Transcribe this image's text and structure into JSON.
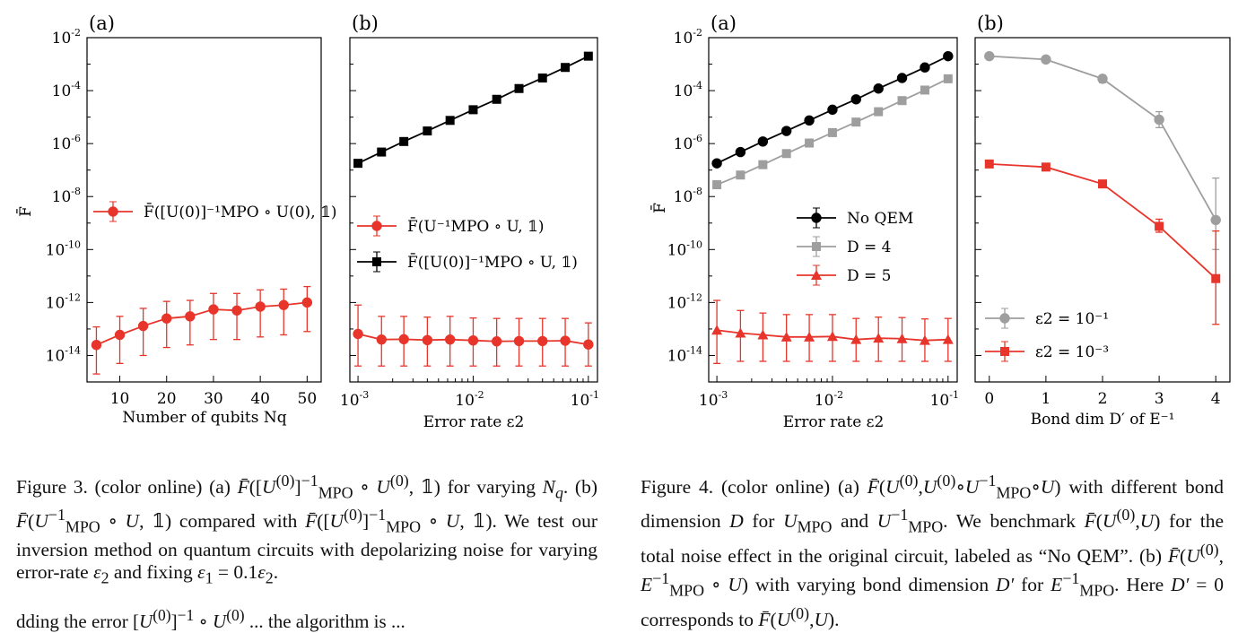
{
  "colors": {
    "red": "#e8352b",
    "black": "#000000",
    "gray": "#9e9e9e"
  },
  "figures": [
    {
      "id": "fig3",
      "panels": [
        {
          "letter": "(a)",
          "xlabel": "Number of qubits Nq",
          "ylabel": "F̄",
          "legend": [
            "F̄([U(0)]⁻¹MPO ∘ U(0), 𝟙)"
          ]
        },
        {
          "letter": "(b)",
          "xlabel": "Error rate ε2",
          "legend": [
            "F̄(U⁻¹MPO ∘ U, 𝟙)",
            "F̄([U(0)]⁻¹MPO ∘ U, 𝟙)"
          ]
        }
      ],
      "caption": "Figure 3. (color online) (a) F̄([U(0)]⁻¹MPO ∘ U(0), 𝟙) for varying Nq. (b) F̄(U⁻¹MPO ∘ U, 𝟙) compared with F̄([U(0)]⁻¹MPO ∘ U, 𝟙). We test our inversion method on quantum circuits with depolarizing noise for varying error-rate ε2 and fixing ε1 = 0.1ε2."
    },
    {
      "id": "fig4",
      "panels": [
        {
          "letter": "(a)",
          "xlabel": "Error rate ε2",
          "ylabel": "F̄",
          "legend": [
            "No QEM",
            "D = 4",
            "D = 5"
          ]
        },
        {
          "letter": "(b)",
          "xlabel": "Bond dim D′ of E⁻¹",
          "legend": [
            "ε2 = 10⁻¹",
            "ε2 = 10⁻³"
          ]
        }
      ],
      "caption": "Figure 4. (color online) (a) F̄(U(0), U(0)∘U⁻¹MPO∘U) with different bond dimension D for UMPO and U⁻¹MPO. We benchmark F̄(U(0), U) for the total noise effect in the original circuit, labeled as “No QEM”. (b) F̄(U(0), E⁻¹MPO ∘ U) with varying bond dimension D′ for E⁻¹MPO. Here D′ = 0 corresponds to F̄(U(0), U)."
    }
  ],
  "chart_data": [
    {
      "type": "line",
      "title": "(a)",
      "xlabel": "Number of qubits Nq",
      "ylabel": "F̄",
      "xlim": [
        3,
        53
      ],
      "ylim": [
        1e-15,
        0.01
      ],
      "yscale": "log",
      "x": [
        5,
        10,
        15,
        20,
        25,
        30,
        35,
        40,
        45,
        50
      ],
      "xticks": [
        "10",
        "20",
        "30",
        "40",
        "50"
      ],
      "yticks": [
        "10-14",
        "10-12",
        "10-10",
        "10-8",
        "10-6",
        "10-4",
        "10-2"
      ],
      "series": [
        {
          "name": "F̄([U(0)]⁻¹MPO ∘ U(0), 𝟙)",
          "color": "#e8352b",
          "marker": "circle",
          "values": [
            2.5e-14,
            6e-14,
            1.3e-13,
            2.5e-13,
            3e-13,
            5.5e-13,
            5e-13,
            7e-13,
            8e-13,
            1e-12
          ],
          "err_low": [
            2e-15,
            5e-15,
            1e-14,
            2e-14,
            2.5e-14,
            4e-14,
            4e-14,
            5e-14,
            6e-14,
            8e-14
          ],
          "err_high": [
            1.2e-13,
            3e-13,
            6e-13,
            1.1e-12,
            1.2e-12,
            2.2e-12,
            2.2e-12,
            3e-12,
            3.2e-12,
            4e-12
          ]
        }
      ]
    },
    {
      "type": "line",
      "title": "(b)",
      "xlabel": "Error rate ε2",
      "xscale": "log",
      "xlim": [
        0.00085,
        0.12
      ],
      "ylim": [
        1e-15,
        0.01
      ],
      "yscale": "log",
      "x": [
        0.001,
        0.0016,
        0.0025,
        0.004,
        0.0063,
        0.01,
        0.016,
        0.025,
        0.04,
        0.063,
        0.1
      ],
      "xticks": [
        "10-3",
        "10-2",
        "10-1"
      ],
      "series": [
        {
          "name": "F̄(U⁻¹MPO ∘ U, 𝟙)",
          "color": "#e8352b",
          "marker": "circle",
          "values": [
            6.5e-14,
            4e-14,
            4.1e-14,
            3.8e-14,
            4e-14,
            3.7e-14,
            3.4e-14,
            3.5e-14,
            3.5e-14,
            3.6e-14,
            2.6e-14
          ],
          "err_low": [
            4e-15,
            4e-15,
            4e-15,
            4e-15,
            4e-15,
            4e-15,
            4e-15,
            4e-15,
            4e-15,
            4e-15,
            4e-15
          ],
          "err_high": [
            8e-13,
            3e-13,
            3e-13,
            2.8e-13,
            3e-13,
            2.6e-13,
            2.5e-13,
            2.5e-13,
            2.5e-13,
            2.5e-13,
            1.7e-13
          ]
        },
        {
          "name": "F̄([U(0)]⁻¹MPO ∘ U, 𝟙)",
          "color": "#000000",
          "marker": "square",
          "values": [
            1.8e-07,
            4.8e-07,
            1.2e-06,
            3e-06,
            7.5e-06,
            1.9e-05,
            4.7e-05,
            0.00012,
            0.0003,
            0.00075,
            0.002
          ]
        }
      ]
    },
    {
      "type": "line",
      "title": "(a)",
      "xlabel": "Error rate ε2",
      "ylabel": "F̄",
      "xscale": "log",
      "xlim": [
        0.00085,
        0.12
      ],
      "ylim": [
        1e-15,
        0.01
      ],
      "yscale": "log",
      "x": [
        0.001,
        0.0016,
        0.0025,
        0.004,
        0.0063,
        0.01,
        0.016,
        0.025,
        0.04,
        0.063,
        0.1
      ],
      "xticks": [
        "10-3",
        "10-2",
        "10-1"
      ],
      "yticks": [
        "10-14",
        "10-12",
        "10-10",
        "10-8",
        "10-6",
        "10-4",
        "10-2"
      ],
      "series": [
        {
          "name": "No QEM",
          "color": "#000000",
          "marker": "circle",
          "values": [
            1.8e-07,
            4.8e-07,
            1.2e-06,
            3e-06,
            7.5e-06,
            1.9e-05,
            4.7e-05,
            0.00012,
            0.0003,
            0.00075,
            0.002
          ]
        },
        {
          "name": "D = 4",
          "color": "#9e9e9e",
          "marker": "square",
          "values": [
            2.8e-08,
            6.5e-08,
            1.6e-07,
            4.2e-07,
            1.05e-06,
            2.6e-06,
            6.5e-06,
            1.6e-05,
            4.2e-05,
            0.000105,
            0.00028
          ]
        },
        {
          "name": "D = 5",
          "color": "#e8352b",
          "marker": "triangle",
          "values": [
            9e-14,
            7e-14,
            6e-14,
            5e-14,
            5e-14,
            5.2e-14,
            4e-14,
            4.5e-14,
            4.3e-14,
            3.7e-14,
            4e-14
          ],
          "err_low": [
            5e-15,
            6e-15,
            6e-15,
            6e-15,
            6e-15,
            6e-15,
            6e-15,
            6e-15,
            6e-15,
            6e-15,
            6e-15
          ],
          "err_high": [
            1.2e-12,
            5e-13,
            4e-13,
            3.5e-13,
            3.5e-13,
            3.5e-13,
            2.5e-13,
            2.8e-13,
            2.7e-13,
            2.4e-13,
            2.5e-13
          ]
        }
      ]
    },
    {
      "type": "line",
      "title": "(b)",
      "xlabel": "Bond dim D′ of E⁻¹",
      "xlim": [
        -0.25,
        4.25
      ],
      "ylim": [
        1e-15,
        0.01
      ],
      "yscale": "log",
      "x": [
        0,
        1,
        2,
        3,
        4
      ],
      "xticks": [
        "0",
        "1",
        "2",
        "3",
        "4"
      ],
      "series": [
        {
          "name": "ε2 = 10⁻¹",
          "color": "#9e9e9e",
          "marker": "circle",
          "values": [
            0.002,
            0.0015,
            0.00028,
            8e-06,
            1.3e-09
          ],
          "err_low": [
            0.0016,
            0.0012,
            0.0002,
            4e-06,
            1e-10
          ],
          "err_high": [
            0.0025,
            0.0019,
            0.00038,
            1.6e-05,
            5e-08
          ]
        },
        {
          "name": "ε2 = 10⁻³",
          "color": "#e8352b",
          "marker": "square",
          "values": [
            1.7e-07,
            1.3e-07,
            3e-08,
            7.5e-10,
            8e-12
          ],
          "err_low": [
            1.4e-07,
            1.05e-07,
            2.2e-08,
            4.5e-10,
            1.5e-13
          ],
          "err_high": [
            2e-07,
            1.6e-07,
            4e-08,
            1.4e-09,
            5e-10
          ]
        }
      ]
    }
  ]
}
